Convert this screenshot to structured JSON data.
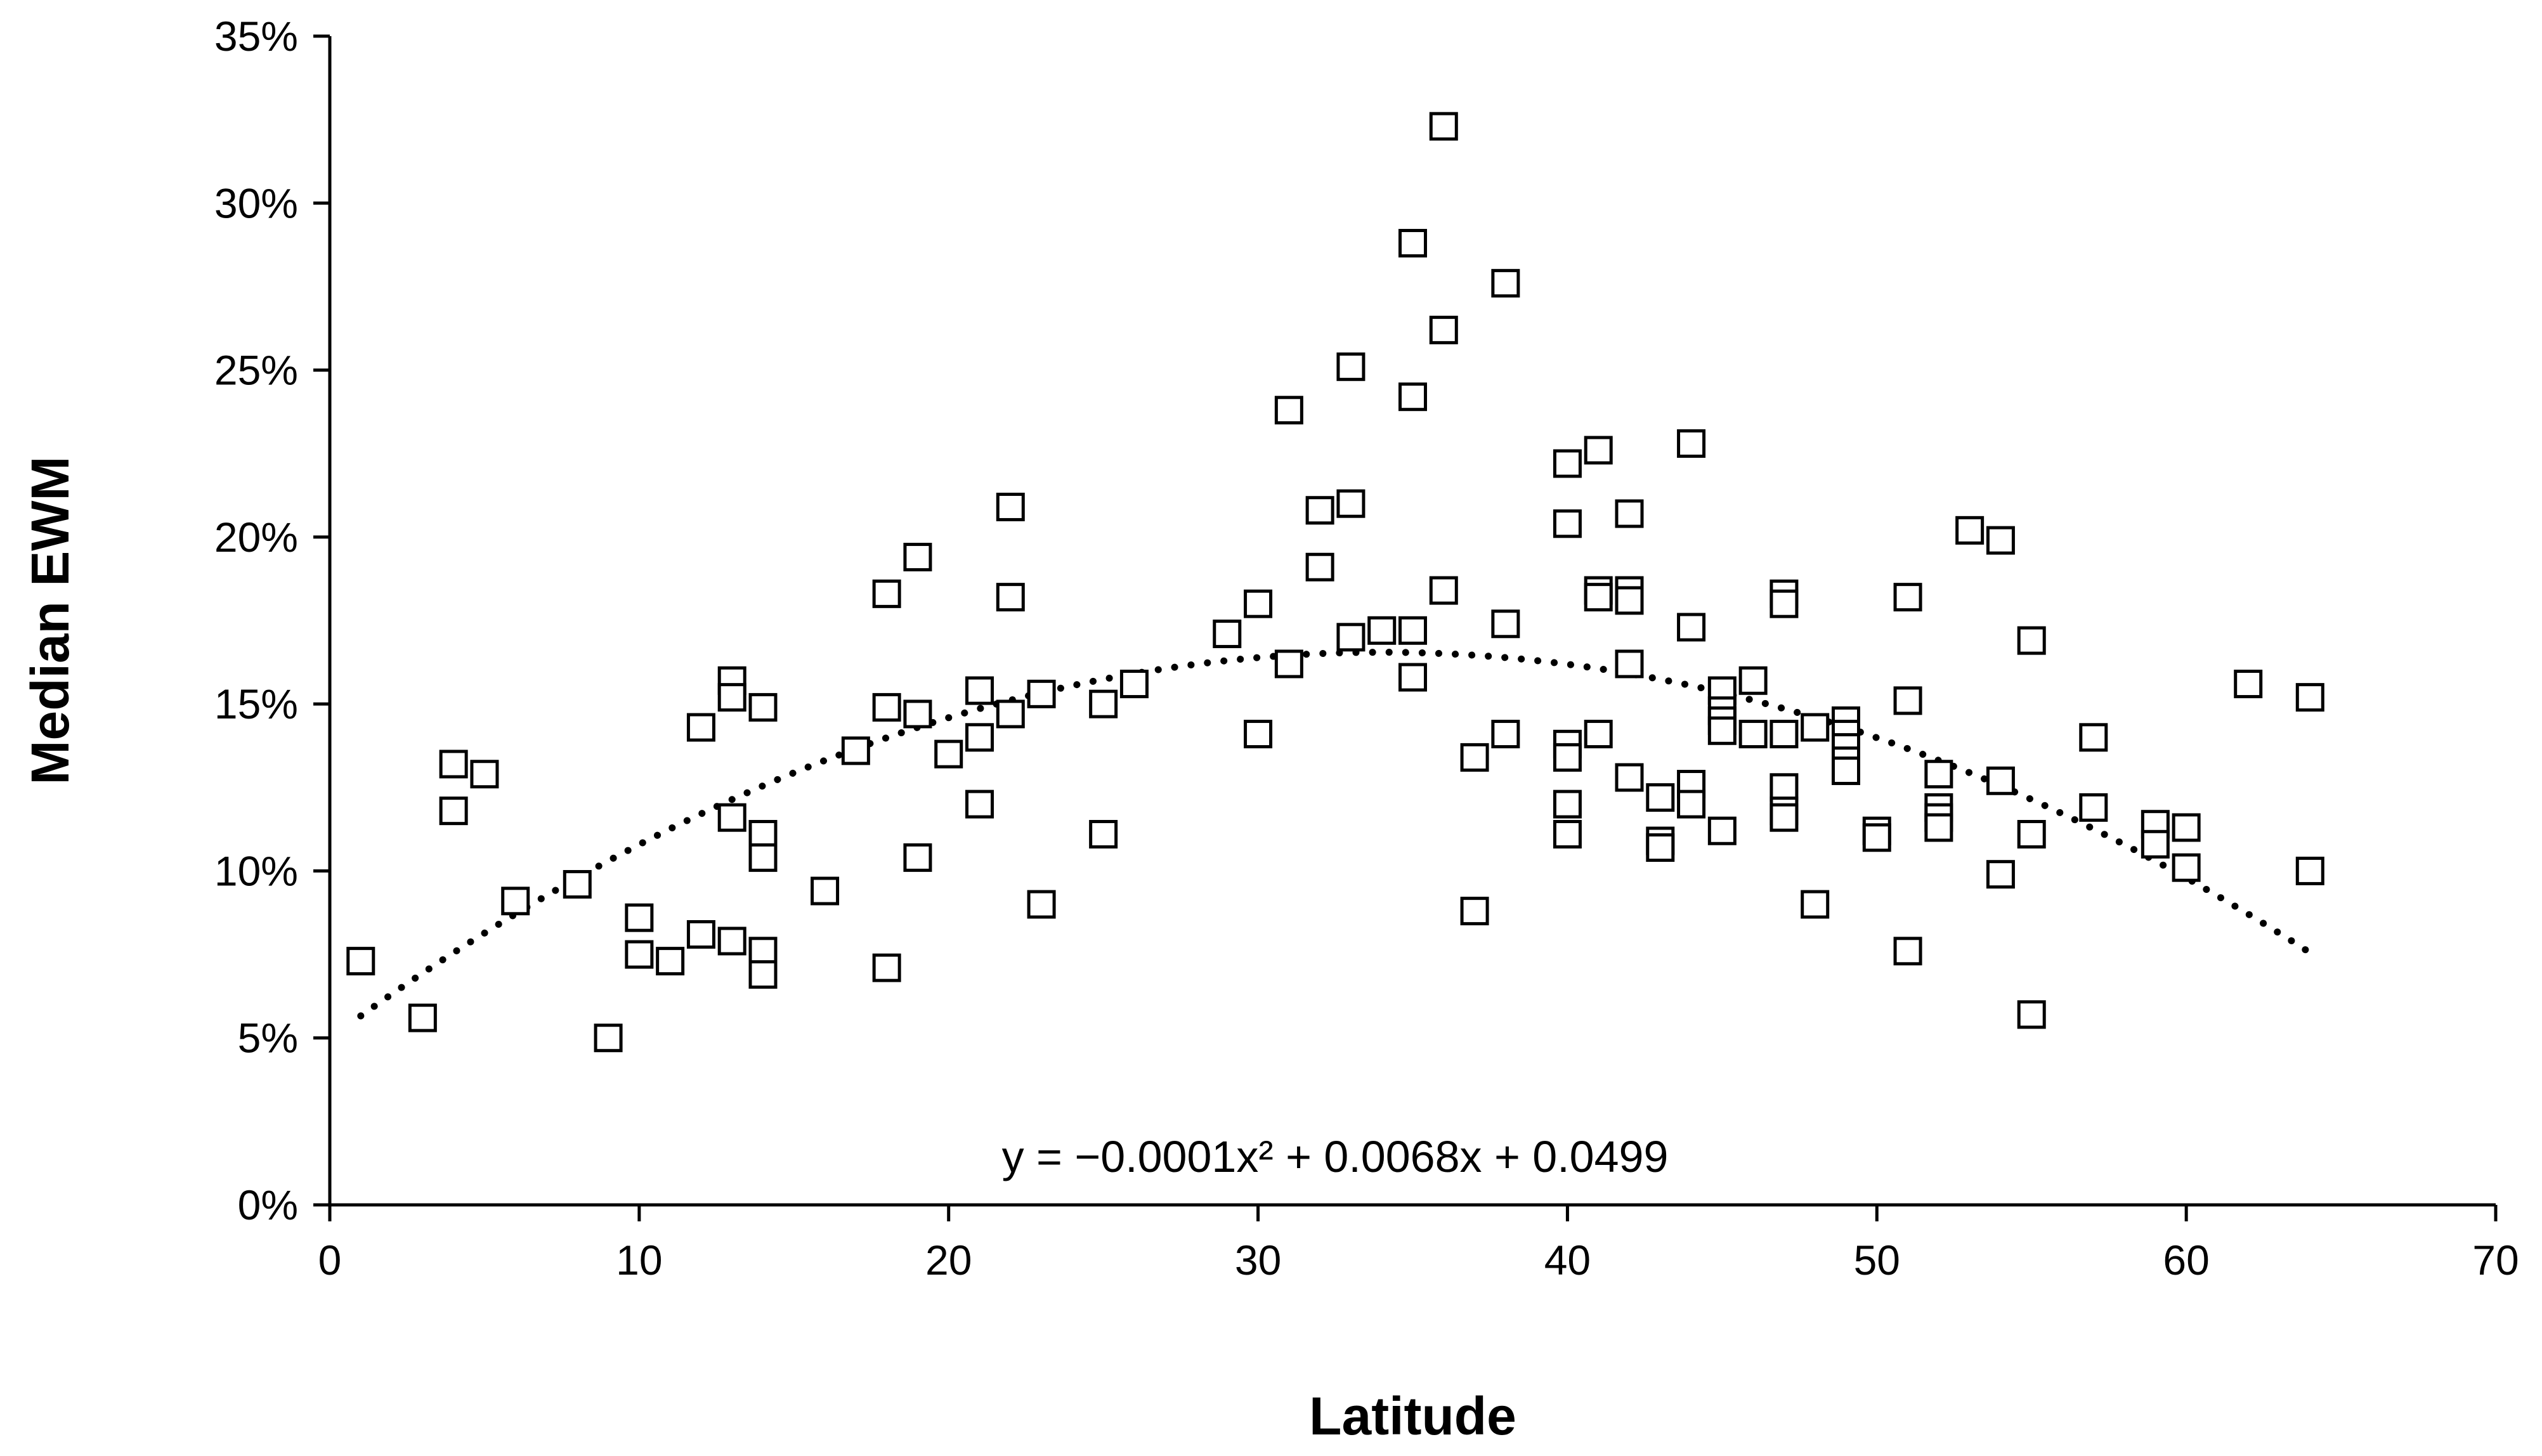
{
  "chart_data": {
    "type": "scatter",
    "title": "",
    "xlabel": "Latitude",
    "ylabel": "Median EWM",
    "xlim": [
      0,
      70
    ],
    "ylim": [
      0,
      0.35
    ],
    "x_ticks": [
      0,
      10,
      20,
      30,
      40,
      50,
      60,
      70
    ],
    "x_tick_labels": [
      "0",
      "10",
      "20",
      "30",
      "40",
      "50",
      "60",
      "70"
    ],
    "y_ticks": [
      0,
      0.05,
      0.1,
      0.15,
      0.2,
      0.25,
      0.3,
      0.35
    ],
    "y_tick_labels": [
      "0%",
      "5%",
      "10%",
      "15%",
      "20%",
      "25%",
      "30%",
      "35%"
    ],
    "grid": false,
    "legend": "none",
    "marker": "open-square",
    "series": [
      {
        "points": [
          [
            1,
            0.073
          ],
          [
            3,
            0.056
          ],
          [
            4,
            0.132
          ],
          [
            4,
            0.118
          ],
          [
            5,
            0.129
          ],
          [
            6,
            0.091
          ],
          [
            8,
            0.096
          ],
          [
            9,
            0.05
          ],
          [
            10,
            0.086
          ],
          [
            10,
            0.075
          ],
          [
            11,
            0.073
          ],
          [
            12,
            0.081
          ],
          [
            12,
            0.143
          ],
          [
            13,
            0.157
          ],
          [
            13,
            0.152
          ],
          [
            13,
            0.116
          ],
          [
            13,
            0.079
          ],
          [
            14,
            0.149
          ],
          [
            14,
            0.111
          ],
          [
            14,
            0.104
          ],
          [
            14,
            0.076
          ],
          [
            14,
            0.069
          ],
          [
            16,
            0.094
          ],
          [
            17,
            0.136
          ],
          [
            18,
            0.183
          ],
          [
            18,
            0.149
          ],
          [
            18,
            0.071
          ],
          [
            19,
            0.194
          ],
          [
            19,
            0.147
          ],
          [
            19,
            0.104
          ],
          [
            20,
            0.135
          ],
          [
            21,
            0.154
          ],
          [
            21,
            0.14
          ],
          [
            21,
            0.12
          ],
          [
            22,
            0.209
          ],
          [
            22,
            0.182
          ],
          [
            22,
            0.147
          ],
          [
            23,
            0.153
          ],
          [
            23,
            0.09
          ],
          [
            25,
            0.15
          ],
          [
            25,
            0.111
          ],
          [
            26,
            0.156
          ],
          [
            29,
            0.171
          ],
          [
            30,
            0.18
          ],
          [
            30,
            0.141
          ],
          [
            31,
            0.238
          ],
          [
            31,
            0.162
          ],
          [
            32,
            0.208
          ],
          [
            32,
            0.191
          ],
          [
            33,
            0.251
          ],
          [
            33,
            0.21
          ],
          [
            33,
            0.17
          ],
          [
            34,
            0.172
          ],
          [
            35,
            0.288
          ],
          [
            35,
            0.242
          ],
          [
            35,
            0.172
          ],
          [
            35,
            0.158
          ],
          [
            36,
            0.323
          ],
          [
            36,
            0.262
          ],
          [
            36,
            0.184
          ],
          [
            37,
            0.134
          ],
          [
            37,
            0.088
          ],
          [
            38,
            0.276
          ],
          [
            38,
            0.174
          ],
          [
            38,
            0.141
          ],
          [
            40,
            0.222
          ],
          [
            40,
            0.204
          ],
          [
            40,
            0.138
          ],
          [
            40,
            0.134
          ],
          [
            40,
            0.12
          ],
          [
            40,
            0.111
          ],
          [
            41,
            0.226
          ],
          [
            41,
            0.184
          ],
          [
            41,
            0.182
          ],
          [
            41,
            0.141
          ],
          [
            42,
            0.207
          ],
          [
            42,
            0.184
          ],
          [
            42,
            0.181
          ],
          [
            42,
            0.162
          ],
          [
            42,
            0.128
          ],
          [
            43,
            0.122
          ],
          [
            43,
            0.109
          ],
          [
            43,
            0.107
          ],
          [
            44,
            0.228
          ],
          [
            44,
            0.173
          ],
          [
            44,
            0.126
          ],
          [
            44,
            0.12
          ],
          [
            45,
            0.154
          ],
          [
            45,
            0.148
          ],
          [
            45,
            0.145
          ],
          [
            45,
            0.142
          ],
          [
            45,
            0.112
          ],
          [
            46,
            0.157
          ],
          [
            46,
            0.141
          ],
          [
            47,
            0.183
          ],
          [
            47,
            0.18
          ],
          [
            47,
            0.141
          ],
          [
            47,
            0.125
          ],
          [
            47,
            0.118
          ],
          [
            47,
            0.116
          ],
          [
            48,
            0.143
          ],
          [
            48,
            0.09
          ],
          [
            49,
            0.145
          ],
          [
            49,
            0.141
          ],
          [
            49,
            0.137
          ],
          [
            49,
            0.133
          ],
          [
            49,
            0.13
          ],
          [
            50,
            0.112
          ],
          [
            50,
            0.11
          ],
          [
            51,
            0.182
          ],
          [
            51,
            0.151
          ],
          [
            51,
            0.076
          ],
          [
            52,
            0.129
          ],
          [
            52,
            0.119
          ],
          [
            52,
            0.116
          ],
          [
            52,
            0.113
          ],
          [
            53,
            0.202
          ],
          [
            54,
            0.199
          ],
          [
            54,
            0.127
          ],
          [
            54,
            0.099
          ],
          [
            55,
            0.169
          ],
          [
            55,
            0.111
          ],
          [
            55,
            0.057
          ],
          [
            57,
            0.14
          ],
          [
            57,
            0.119
          ],
          [
            59,
            0.114
          ],
          [
            59,
            0.108
          ],
          [
            60,
            0.113
          ],
          [
            60,
            0.101
          ],
          [
            62,
            0.156
          ],
          [
            64,
            0.152
          ],
          [
            64,
            0.1
          ]
        ]
      }
    ],
    "trendline": {
      "type": "polynomial",
      "order": 2,
      "style": "dotted",
      "coefficients": [
        -0.0001,
        0.0068,
        0.0499
      ],
      "x_range": [
        1,
        64
      ],
      "equation_label": "y = −0.0001x² + 0.0068x + 0.0499"
    }
  }
}
